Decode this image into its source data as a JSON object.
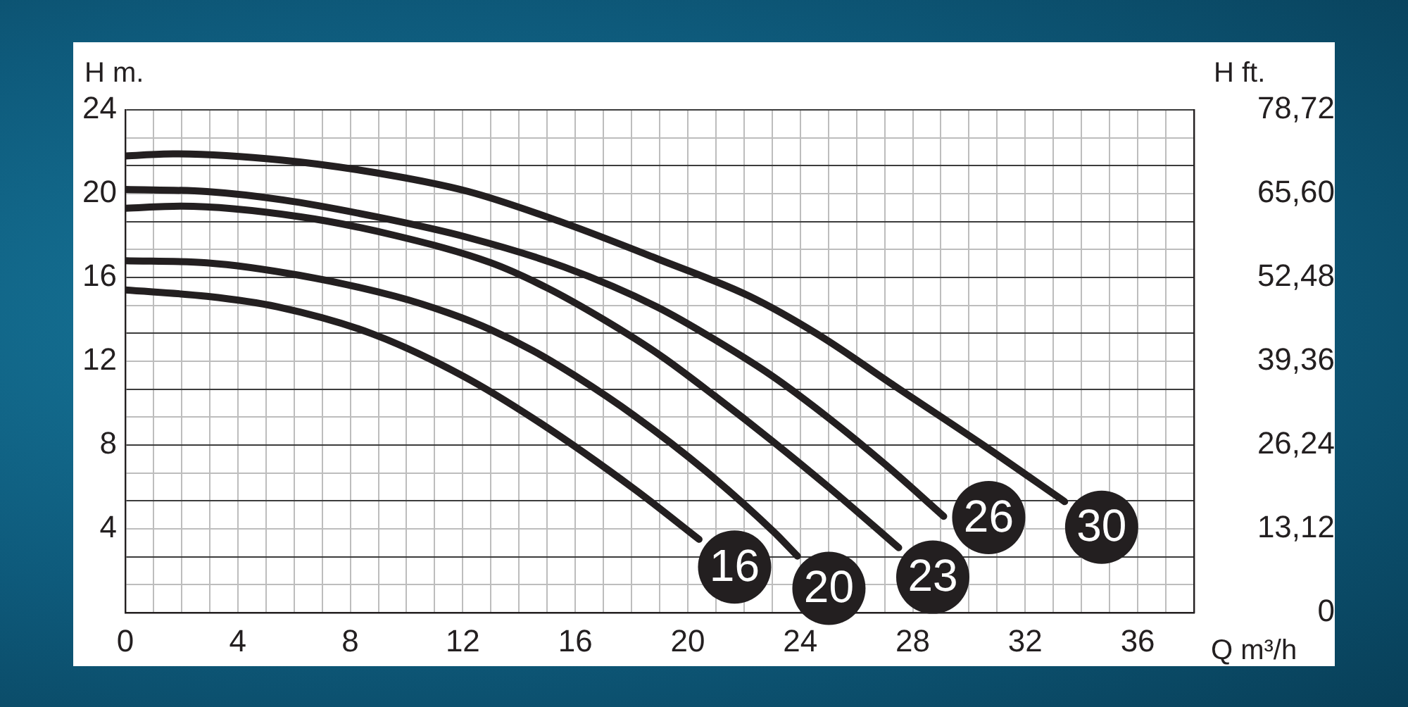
{
  "chart_data": {
    "type": "line",
    "xlabel": "Q m³/h",
    "ylabel": "H m.",
    "y2label": "H ft.",
    "legend": "bottom right",
    "xlim": [
      0,
      38
    ],
    "xticks": [
      0,
      {
        "value": 1,
        "label": null
      },
      {
        "value": 2,
        "label": null
      },
      {
        "value": 3,
        "label": null
      },
      4,
      {
        "value": 5,
        "label": null
      },
      {
        "value": 6,
        "label": null
      },
      {
        "value": 7,
        "label": null
      },
      8,
      {
        "value": 9,
        "label": null
      },
      {
        "value": 10,
        "label": null
      },
      {
        "value": 11,
        "label": null
      },
      12,
      {
        "value": 13,
        "label": null
      },
      {
        "value": 14,
        "label": null
      },
      {
        "value": 15,
        "label": null
      },
      16,
      {
        "value": 17,
        "label": null
      },
      {
        "value": 18,
        "label": null
      },
      {
        "value": 19,
        "label": null
      },
      20,
      {
        "value": 21,
        "label": null
      },
      {
        "value": 22,
        "label": null
      },
      {
        "value": 23,
        "label": null
      },
      24,
      {
        "value": 25,
        "label": null
      },
      {
        "value": 26,
        "label": null
      },
      {
        "value": 27,
        "label": null
      },
      28,
      {
        "value": 29,
        "label": null
      },
      {
        "value": 30,
        "label": null
      },
      {
        "value": 31,
        "label": null
      },
      32,
      {
        "value": 33,
        "label": null
      },
      {
        "value": 34,
        "label": null
      },
      {
        "value": 35,
        "label": null
      },
      36,
      {
        "value": 37,
        "label": null
      },
      {
        "value": 38,
        "label": null
      }
    ],
    "ylim": [
      0,
      24
    ],
    "yticks": [
      {
        "value": 0,
        "label": null
      },
      {
        "value": 1.33,
        "label": null
      },
      {
        "value": 2.67,
        "label": null
      },
      4,
      {
        "value": 5.33,
        "label": null
      },
      {
        "value": 6.67,
        "label": null
      },
      8,
      {
        "value": 9.33,
        "label": null
      },
      {
        "value": 10.67,
        "label": null
      },
      12,
      {
        "value": 13.33,
        "label": null
      },
      {
        "value": 14.67,
        "label": null
      },
      16,
      {
        "value": 17.33,
        "label": null
      },
      {
        "value": 18.67,
        "label": null
      },
      20,
      {
        "value": 21.33,
        "label": null
      },
      {
        "value": 22.67,
        "label": null
      },
      24
    ],
    "y2lim": [
      0,
      78.72
    ],
    "y2ticks": [
      0,
      {
        "value": 13.12,
        "label": "13,12"
      },
      {
        "value": 26.24,
        "label": "26,24"
      },
      {
        "value": 39.36,
        "label": "39,36"
      },
      {
        "value": 52.48,
        "label": "52,48"
      },
      {
        "value": 65.6,
        "label": "65,60"
      },
      {
        "value": 78.72,
        "label": "78,72"
      }
    ],
    "grid": true,
    "series": [
      {
        "name": "16",
        "color": "#231f20",
        "x": [
          0,
          2.9,
          5.4,
          8.8,
          12,
          14.7,
          18.1,
          20.4
        ],
        "values": [
          15.4,
          15.1,
          14.6,
          13.3,
          11.3,
          9.1,
          5.9,
          3.5
        ]
      },
      {
        "name": "20",
        "color": "#231f20",
        "x": [
          0,
          2.9,
          6.2,
          9.6,
          11.5,
          13,
          14.5,
          16,
          18.1,
          20.6,
          23.1,
          23.9
        ],
        "values": [
          16.8,
          16.7,
          16.1,
          15.1,
          14.3,
          13.5,
          12.5,
          11.3,
          9.4,
          6.8,
          3.8,
          2.7
        ]
      },
      {
        "name": "23",
        "color": "#231f20",
        "x": [
          0,
          2,
          6.2,
          9.6,
          13,
          15,
          17,
          19,
          21,
          23,
          25,
          27.5
        ],
        "values": [
          19.3,
          19.4,
          18.9,
          18,
          16.7,
          15.5,
          14,
          12.3,
          10.3,
          8.2,
          6,
          3.1
        ]
      },
      {
        "name": "26",
        "color": "#231f20",
        "x": [
          0,
          2.9,
          5.6,
          8.9,
          12.2,
          15.6,
          18.9,
          21,
          23,
          25,
          27,
          29.1
        ],
        "values": [
          20.2,
          20.1,
          19.7,
          18.9,
          17.9,
          16.5,
          14.6,
          13,
          11.3,
          9.3,
          7.1,
          4.6
        ]
      },
      {
        "name": "30",
        "color": "#231f20",
        "x": [
          0,
          1.7,
          5.6,
          8.9,
          12.2,
          15.6,
          18.9,
          22.2,
          24.6,
          27.6,
          30.5,
          33.4
        ],
        "values": [
          21.8,
          21.9,
          21.6,
          21,
          20.1,
          18.6,
          16.9,
          15.1,
          13.3,
          10.6,
          8,
          5.3
        ]
      }
    ]
  }
}
